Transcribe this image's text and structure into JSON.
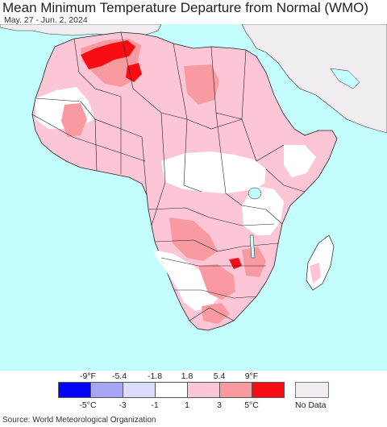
{
  "header": {
    "title": "Mean Minimum Temperature Departure from Normal (WMO)",
    "date_range": "May. 27 - Jun. 2, 2024"
  },
  "colors": {
    "ocean": "#c4fdfd",
    "land_neutral": "#ffffff",
    "land_nodata": "#f0ecef",
    "plus1_3": "#fdc6d7",
    "plus3_5": "#f89aa0",
    "plus5": "#f80d14",
    "minus1": "#dcdcff",
    "minus3": "#a5a5f5",
    "minus5": "#0505f5"
  },
  "legend": {
    "fahrenheit_labels": [
      "-9°F",
      "-5.4",
      "-1.8",
      "1.8",
      "5.4",
      "9°F"
    ],
    "celsius_labels": [
      "-5°C",
      "-3",
      "-1",
      "1",
      "3",
      "5°C"
    ],
    "bins": [
      {
        "color": "#0505f5"
      },
      {
        "color": "#a5a5f5"
      },
      {
        "color": "#dcdcff"
      },
      {
        "color": "#ffffff"
      },
      {
        "color": "#fdc6d7"
      },
      {
        "color": "#f89aa0"
      },
      {
        "color": "#f80d14"
      }
    ],
    "no_data_label": "No Data",
    "no_data_color": "#f0ecef"
  },
  "footer": {
    "source": "Source: World Meteorological Organization"
  }
}
